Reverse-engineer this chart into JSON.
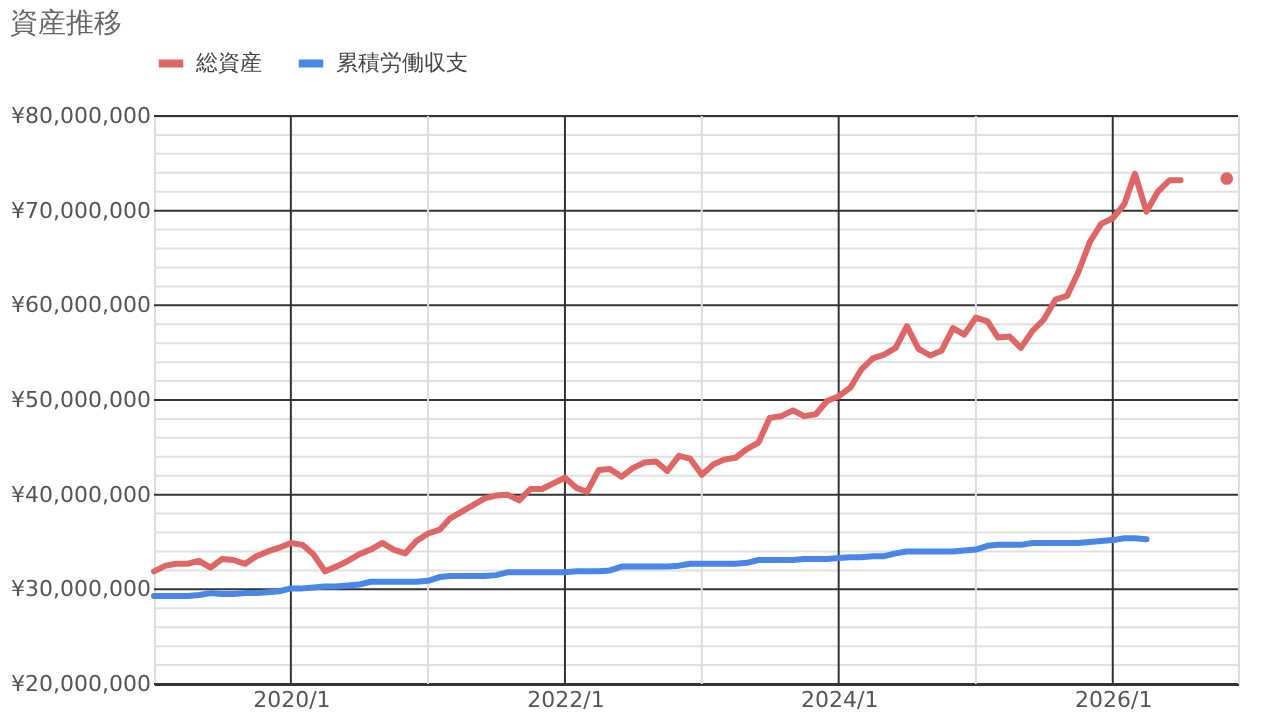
{
  "chart_data": {
    "type": "line",
    "title": "資産推移",
    "legend": "top",
    "marker": "none",
    "line_style": "solid",
    "grid": true,
    "x": [
      "2019-01",
      "2019-02",
      "2019-03",
      "2019-04",
      "2019-05",
      "2019-06",
      "2019-07",
      "2019-08",
      "2019-09",
      "2019-10",
      "2019-11",
      "2019-12",
      "2020-01",
      "2020-02",
      "2020-03",
      "2020-04",
      "2020-05",
      "2020-06",
      "2020-07",
      "2020-08",
      "2020-09",
      "2020-10",
      "2020-11",
      "2020-12",
      "2021-01",
      "2021-02",
      "2021-03",
      "2021-04",
      "2021-05",
      "2021-06",
      "2021-07",
      "2021-08",
      "2021-09",
      "2021-10",
      "2021-11",
      "2021-12",
      "2022-01",
      "2022-02",
      "2022-03",
      "2022-04",
      "2022-05",
      "2022-06",
      "2022-07",
      "2022-08",
      "2022-09",
      "2022-10",
      "2022-11",
      "2022-12",
      "2023-01",
      "2023-02",
      "2023-03",
      "2023-04",
      "2023-05",
      "2023-06",
      "2023-07",
      "2023-08",
      "2023-09",
      "2023-10",
      "2023-11",
      "2023-12",
      "2024-01",
      "2024-02",
      "2024-03",
      "2024-04",
      "2024-05",
      "2024-06",
      "2024-07",
      "2024-08",
      "2024-09",
      "2024-10",
      "2024-11",
      "2024-12",
      "2025-01",
      "2025-02",
      "2025-03",
      "2025-04",
      "2025-05",
      "2025-06",
      "2025-07",
      "2025-08",
      "2025-09",
      "2025-10",
      "2025-11",
      "2025-12",
      "2026-01",
      "2026-02",
      "2026-03",
      "2026-04",
      "2026-05",
      "2026-06",
      "2026-07"
    ],
    "series": [
      {
        "name": "総資産",
        "color": "#e06666",
        "values": [
          31900000,
          32500000,
          32700000,
          32700000,
          33000000,
          32300000,
          33200000,
          33100000,
          32700000,
          33500000,
          34000000,
          34400000,
          34900000,
          34700000,
          33700000,
          31900000,
          32400000,
          33000000,
          33700000,
          34200000,
          34900000,
          34200000,
          33800000,
          35100000,
          35900000,
          36300000,
          37500000,
          38200000,
          38900000,
          39600000,
          39900000,
          40000000,
          39400000,
          40600000,
          40600000,
          41200000,
          41800000,
          40700000,
          40300000,
          42600000,
          42700000,
          41900000,
          42800000,
          43400000,
          43500000,
          42500000,
          44100000,
          43800000,
          42100000,
          43200000,
          43700000,
          43900000,
          44800000,
          45500000,
          48100000,
          48300000,
          48900000,
          48300000,
          48500000,
          49900000,
          50400000,
          51300000,
          53200000,
          54400000,
          54800000,
          55500000,
          57800000,
          55400000,
          54700000,
          55200000,
          57600000,
          56900000,
          58700000,
          58300000,
          56600000,
          56700000,
          55500000,
          57300000,
          58500000,
          60600000,
          61000000,
          63500000,
          66700000,
          68600000,
          69200000,
          70700000,
          73900000,
          69900000,
          72000000,
          73200000,
          73200000
        ]
      },
      {
        "type": "scatter",
        "marker": "circle",
        "color": "#e06666",
        "x": [
          "2026-11"
        ],
        "values": [
          73400000
        ]
      },
      {
        "name": "累積労働収支",
        "color": "#4a86e8",
        "values": [
          29300000,
          29300000,
          29300000,
          29300000,
          29400000,
          29600000,
          29500000,
          29500000,
          29600000,
          29600000,
          29700000,
          29800000,
          30100000,
          30100000,
          30200000,
          30300000,
          30300000,
          30400000,
          30500000,
          30800000,
          30800000,
          30800000,
          30800000,
          30800000,
          30900000,
          31300000,
          31400000,
          31400000,
          31400000,
          31400000,
          31500000,
          31800000,
          31800000,
          31800000,
          31800000,
          31800000,
          31800000,
          31900000,
          31900000,
          31900000,
          32000000,
          32400000,
          32400000,
          32400000,
          32400000,
          32400000,
          32500000,
          32700000,
          32700000,
          32700000,
          32700000,
          32700000,
          32800000,
          33100000,
          33100000,
          33100000,
          33100000,
          33200000,
          33200000,
          33200000,
          33300000,
          33400000,
          33400000,
          33500000,
          33500000,
          33800000,
          34000000,
          34000000,
          34000000,
          34000000,
          34000000,
          34100000,
          34200000,
          34600000,
          34700000,
          34700000,
          34700000,
          34900000,
          34900000,
          34900000,
          34900000,
          34900000,
          35000000,
          35100000,
          35200000,
          35400000,
          35400000,
          35300000,
          null,
          null,
          null
        ]
      }
    ],
    "xlim": [
      "2019-01",
      "2026-12"
    ],
    "xticks": [
      {
        "value": "2020-01",
        "label": "2020/1"
      },
      {
        "value": "2021-01",
        "label": null
      },
      {
        "value": "2022-01",
        "label": "2022/1"
      },
      {
        "value": "2023-01",
        "label": null
      },
      {
        "value": "2024-01",
        "label": "2024/1"
      },
      {
        "value": "2025-01",
        "label": null
      },
      {
        "value": "2026-01",
        "label": "2026/1"
      }
    ],
    "ylim": [
      20000000,
      80000000
    ],
    "yticks": [
      {
        "value": 20000000,
        "label": "¥20,000,000"
      },
      {
        "value": 22000000,
        "label": null
      },
      {
        "value": 24000000,
        "label": null
      },
      {
        "value": 26000000,
        "label": null
      },
      {
        "value": 28000000,
        "label": null
      },
      {
        "value": 30000000,
        "label": "¥30,000,000"
      },
      {
        "value": 32000000,
        "label": null
      },
      {
        "value": 34000000,
        "label": null
      },
      {
        "value": 36000000,
        "label": null
      },
      {
        "value": 38000000,
        "label": null
      },
      {
        "value": 40000000,
        "label": "¥40,000,000"
      },
      {
        "value": 42000000,
        "label": null
      },
      {
        "value": 44000000,
        "label": null
      },
      {
        "value": 46000000,
        "label": null
      },
      {
        "value": 48000000,
        "label": null
      },
      {
        "value": 50000000,
        "label": "¥50,000,000"
      },
      {
        "value": 52000000,
        "label": null
      },
      {
        "value": 54000000,
        "label": null
      },
      {
        "value": 56000000,
        "label": null
      },
      {
        "value": 58000000,
        "label": null
      },
      {
        "value": 60000000,
        "label": "¥60,000,000"
      },
      {
        "value": 62000000,
        "label": null
      },
      {
        "value": 64000000,
        "label": null
      },
      {
        "value": 66000000,
        "label": null
      },
      {
        "value": 68000000,
        "label": null
      },
      {
        "value": 70000000,
        "label": "¥70,000,000"
      },
      {
        "value": 72000000,
        "label": null
      },
      {
        "value": 74000000,
        "label": null
      },
      {
        "value": 76000000,
        "label": null
      },
      {
        "value": 78000000,
        "label": null
      },
      {
        "value": 80000000,
        "label": "¥80,000,000"
      }
    ]
  }
}
